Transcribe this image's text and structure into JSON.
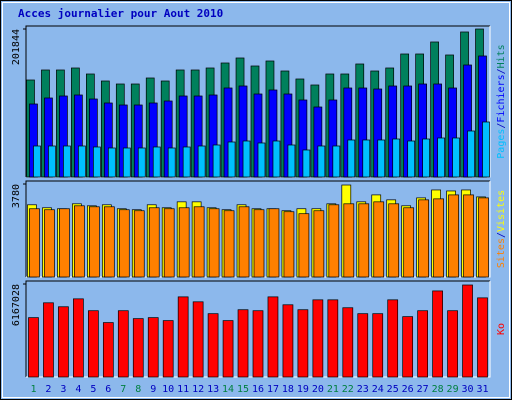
{
  "title": "Acces journalier pour Aout 2010",
  "legend_separator": "/",
  "chart_data": [
    {
      "type": "bar",
      "categories": [
        "1",
        "2",
        "3",
        "4",
        "5",
        "6",
        "7",
        "8",
        "9",
        "10",
        "11",
        "12",
        "13",
        "14",
        "15",
        "16",
        "17",
        "18",
        "19",
        "20",
        "21",
        "22",
        "23",
        "24",
        "25",
        "26",
        "27",
        "28",
        "29",
        "30",
        "31"
      ],
      "category_colors": [
        "#008040",
        "#0000c0",
        "#0000c0",
        "#0000c0",
        "#0000c0",
        "#0000c0",
        "#008040",
        "#008040",
        "#0000c0",
        "#0000c0",
        "#0000c0",
        "#0000c0",
        "#0000c0",
        "#008040",
        "#008040",
        "#0000c0",
        "#0000c0",
        "#0000c0",
        "#0000c0",
        "#0000c0",
        "#008040",
        "#008040",
        "#0000c0",
        "#0000c0",
        "#0000c0",
        "#0000c0",
        "#0000c0",
        "#008040",
        "#008040",
        "#0000c0",
        "#0000c0"
      ],
      "ylim": [
        0,
        201844
      ],
      "yticks": [
        201844
      ],
      "series": [
        {
          "name": "Hits",
          "color": "#00805c",
          "values": [
            132300,
            145950,
            145950,
            148680,
            140490,
            130940,
            126850,
            126850,
            135040,
            130940,
            145950,
            145950,
            148680,
            155500,
            162320,
            151400,
            158220,
            144580,
            133670,
            125490,
            140490,
            140490,
            154130,
            144580,
            148680,
            167770,
            167770,
            184140,
            166410,
            197780,
            201844
          ]
        },
        {
          "name": "Fichiers",
          "color": "#0000ff",
          "values": [
            99570,
            107760,
            110480,
            111850,
            106390,
            100940,
            98210,
            98210,
            100940,
            103660,
            110480,
            110480,
            111850,
            121400,
            124120,
            113210,
            118670,
            113210,
            105030,
            95480,
            105030,
            121400,
            121400,
            120030,
            124120,
            124120,
            126850,
            126850,
            121400,
            152770,
            165040
          ]
        },
        {
          "name": "Pages",
          "color": "#00c0ff",
          "values": [
            42280,
            42280,
            42280,
            42280,
            40920,
            39560,
            39560,
            39560,
            40920,
            39560,
            40920,
            42280,
            43650,
            47740,
            49100,
            46380,
            49100,
            43650,
            36830,
            42280,
            42280,
            50470,
            50470,
            50470,
            51830,
            49100,
            51830,
            53200,
            53200,
            62740,
            75020
          ]
        }
      ]
    },
    {
      "type": "bar",
      "ylim": [
        0,
        3780
      ],
      "yticks": [
        3780
      ],
      "series": [
        {
          "name": "Visites",
          "color": "#ffff00",
          "values": [
            2935,
            2814,
            2774,
            2975,
            2894,
            2935,
            2774,
            2734,
            2935,
            2814,
            3055,
            3055,
            2814,
            2734,
            2935,
            2774,
            2774,
            2693,
            2774,
            2774,
            2975,
            3739,
            3055,
            3337,
            3136,
            2894,
            3216,
            3538,
            3497,
            3538,
            3256
          ]
        },
        {
          "name": "Sites",
          "color": "#ff8000",
          "values": [
            2774,
            2734,
            2774,
            2894,
            2854,
            2854,
            2734,
            2693,
            2814,
            2774,
            2814,
            2854,
            2774,
            2693,
            2854,
            2734,
            2774,
            2653,
            2573,
            2693,
            2935,
            2975,
            2975,
            3055,
            2975,
            2814,
            3136,
            3176,
            3337,
            3337,
            3216
          ]
        }
      ]
    },
    {
      "type": "bar",
      "ylim": [
        0,
        6167028
      ],
      "yticks": [
        6167028
      ],
      "series": [
        {
          "name": "Ko",
          "color": "#ff0000",
          "values": [
            3936420,
            4920525,
            4658097,
            5182953,
            4395669,
            3608385,
            4395669,
            3870813,
            3936420,
            3739599,
            5314167,
            4986132,
            4198848,
            3739599,
            4461276,
            4395669,
            5314167,
            4789311,
            4461276,
            5117346,
            5117346,
            4592490,
            4198848,
            4198848,
            5117346,
            4002027,
            4395669,
            5707809,
            4395669,
            6101451,
            5248560
          ]
        }
      ]
    }
  ]
}
